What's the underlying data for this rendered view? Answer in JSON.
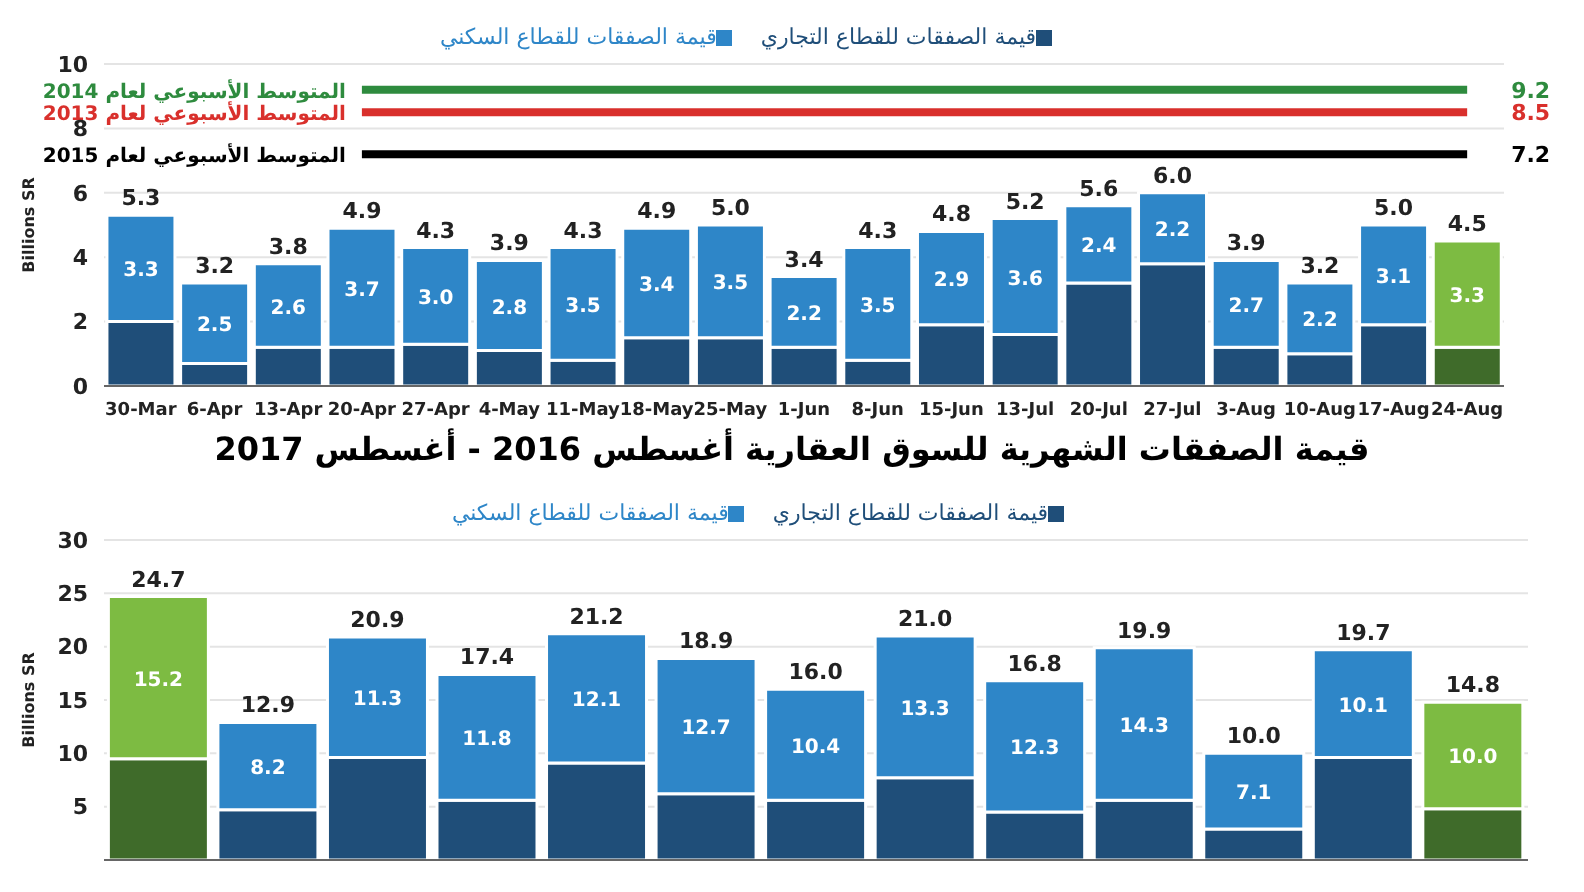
{
  "chart_data": [
    {
      "type": "bar",
      "stacked": true,
      "ylabel": "Billions SR",
      "legend": "top",
      "grid": "y",
      "categories": [
        "30-Mar",
        "6-Apr",
        "13-Apr",
        "20-Apr",
        "27-Apr",
        "4-May",
        "11-May",
        "18-May",
        "25-May",
        "1-Jun",
        "8-Jun",
        "15-Jun",
        "13-Jul",
        "20-Jul",
        "27-Jul",
        "3-Aug",
        "10-Aug",
        "17-Aug",
        "24-Aug"
      ],
      "series": [
        {
          "name": "قيمة الصفقات للقطاع التجاري",
          "color": "#1f4e79",
          "colors": [
            "#1f4e79",
            "#1f4e79",
            "#1f4e79",
            "#1f4e79",
            "#1f4e79",
            "#1f4e79",
            "#1f4e79",
            "#1f4e79",
            "#1f4e79",
            "#1f4e79",
            "#1f4e79",
            "#1f4e79",
            "#1f4e79",
            "#1f4e79",
            "#1f4e79",
            "#1f4e79",
            "#1f4e79",
            "#1f4e79",
            "#3f6b2a"
          ],
          "values": [
            2.0,
            0.7,
            1.2,
            1.2,
            1.3,
            1.1,
            0.8,
            1.5,
            1.5,
            1.2,
            0.8,
            1.9,
            1.6,
            3.2,
            3.8,
            1.2,
            1.0,
            1.9,
            1.2
          ]
        },
        {
          "name": "قيمة الصفقات للقطاع السكني",
          "color": "#2e86c8",
          "colors": [
            "#2e86c8",
            "#2e86c8",
            "#2e86c8",
            "#2e86c8",
            "#2e86c8",
            "#2e86c8",
            "#2e86c8",
            "#2e86c8",
            "#2e86c8",
            "#2e86c8",
            "#2e86c8",
            "#2e86c8",
            "#2e86c8",
            "#2e86c8",
            "#2e86c8",
            "#2e86c8",
            "#2e86c8",
            "#2e86c8",
            "#7dbb42"
          ],
          "values": [
            3.3,
            2.5,
            2.6,
            3.7,
            3.0,
            2.8,
            3.5,
            3.4,
            3.5,
            2.2,
            3.5,
            2.9,
            3.6,
            2.4,
            2.2,
            2.7,
            2.2,
            3.1,
            3.3
          ],
          "value_labels": [
            "3.3",
            "2.5",
            "2.6",
            "3.7",
            "3.0",
            "2.8",
            "3.5",
            "3.4",
            "3.5",
            "2.2",
            "3.5",
            "2.9",
            "3.6",
            "2.4",
            "2.2",
            "2.7",
            "2.2",
            "3.1",
            "3.3"
          ]
        }
      ],
      "totals": [
        "5.3",
        "3.2",
        "3.8",
        "4.9",
        "4.3",
        "3.9",
        "4.3",
        "4.9",
        "5.0",
        "3.4",
        "4.3",
        "4.8",
        "5.2",
        "5.6",
        "6.0",
        "3.9",
        "3.2",
        "5.0",
        "4.5"
      ],
      "ylim": [
        0,
        10
      ],
      "yticks": [
        0,
        2,
        4,
        6,
        8,
        10
      ],
      "ref_lines": [
        {
          "axis": "y",
          "value": 9.2,
          "label": "المتوسط الأسبوعي لعام 2014",
          "color": "#2e8b3e"
        },
        {
          "axis": "y",
          "value": 8.5,
          "label": "المتوسط الأسبوعي لعام 2013",
          "color": "#d9302c"
        },
        {
          "axis": "y",
          "value": 7.2,
          "label": "المتوسط الأسبوعي لعام 2015",
          "color": "#000000"
        }
      ],
      "annotations": [
        "9.2",
        "8.5",
        "7.2"
      ]
    },
    {
      "type": "bar",
      "stacked": true,
      "title": "قيمة الصفقات الشهرية للسوق العقارية أغسطس 2016 - أغسطس 2017",
      "ylabel": "Billions SR",
      "legend": "top",
      "grid": "y",
      "tick_labels": "y",
      "categories": [
        null,
        null,
        null,
        null,
        null,
        null,
        null,
        null,
        null,
        null,
        null,
        null,
        null
      ],
      "series": [
        {
          "name": "قيمة الصفقات للقطاع التجاري",
          "color": "#1f4e79",
          "colors": [
            "#3f6b2a",
            "#1f4e79",
            "#1f4e79",
            "#1f4e79",
            "#1f4e79",
            "#1f4e79",
            "#1f4e79",
            "#1f4e79",
            "#1f4e79",
            "#1f4e79",
            "#1f4e79",
            "#1f4e79",
            "#3f6b2a"
          ],
          "values": [
            9.5,
            4.7,
            9.6,
            5.6,
            9.1,
            6.2,
            5.6,
            7.7,
            4.5,
            5.6,
            2.9,
            9.6,
            4.8
          ]
        },
        {
          "name": "قيمة الصفقات للقطاع السكني",
          "color": "#2e86c8",
          "colors": [
            "#7dbb42",
            "#2e86c8",
            "#2e86c8",
            "#2e86c8",
            "#2e86c8",
            "#2e86c8",
            "#2e86c8",
            "#2e86c8",
            "#2e86c8",
            "#2e86c8",
            "#2e86c8",
            "#2e86c8",
            "#7dbb42"
          ],
          "values": [
            15.2,
            8.2,
            11.3,
            11.8,
            12.1,
            12.7,
            10.4,
            13.3,
            12.3,
            14.3,
            7.1,
            10.1,
            10.0
          ],
          "value_labels": [
            "15.2",
            "8.2",
            "11.3",
            "11.8",
            "12.1",
            "12.7",
            "10.4",
            "13.3",
            "12.3",
            "14.3",
            "7.1",
            "10.1",
            "10.0"
          ]
        }
      ],
      "totals": [
        "24.7",
        "12.9",
        "20.9",
        "17.4",
        "21.2",
        "18.9",
        "16.0",
        "21.0",
        "16.8",
        "19.9",
        "10.0",
        "19.7",
        "14.8"
      ],
      "ylim": [
        0,
        30
      ],
      "yticks": [
        5,
        10,
        15,
        20,
        25,
        30
      ]
    }
  ]
}
